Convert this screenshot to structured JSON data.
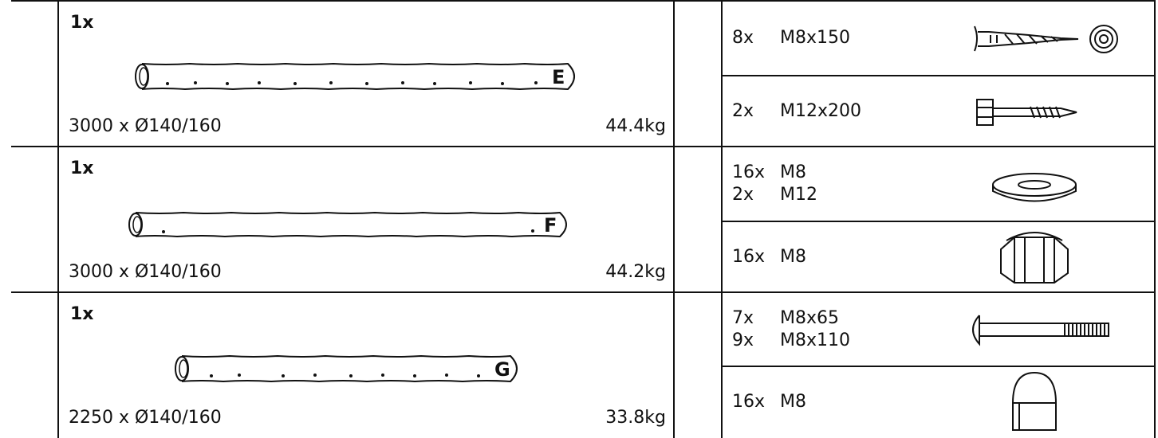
{
  "parts": [
    {
      "quantity": "1x",
      "letter": "E",
      "dimensions": "3000 x Ø140/160",
      "weight": "44.4kg"
    },
    {
      "quantity": "1x",
      "letter": "F",
      "dimensions": "3000 x Ø140/160",
      "weight": "44.2kg"
    },
    {
      "quantity": "1x",
      "letter": "G",
      "dimensions": "2250 x Ø140/160",
      "weight": "33.8kg"
    }
  ],
  "hardware": [
    {
      "lines": [
        {
          "qty": "8x",
          "size": "M8x150"
        }
      ]
    },
    {
      "lines": [
        {
          "qty": "2x",
          "size": "M12x200"
        }
      ]
    },
    {
      "lines": [
        {
          "qty": "16x",
          "size": "M8"
        },
        {
          "qty": "2x",
          "size": "M12"
        }
      ]
    },
    {
      "lines": [
        {
          "qty": "16x",
          "size": "M8"
        }
      ]
    },
    {
      "lines": [
        {
          "qty": "7x",
          "size": "M8x65"
        },
        {
          "qty": "9x",
          "size": "M8x110"
        }
      ]
    },
    {
      "lines": [
        {
          "qty": "16x",
          "size": "M8"
        }
      ]
    }
  ]
}
